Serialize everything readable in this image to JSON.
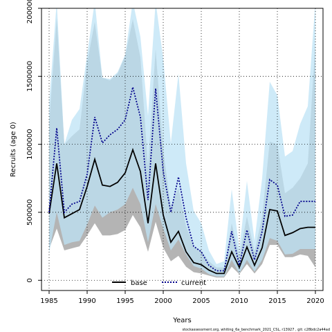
{
  "chart_data": {
    "type": "line",
    "title": "",
    "xlabel": "Years",
    "ylabel": "Recruits (age 0)",
    "xlim": [
      1984,
      2021
    ],
    "ylim": [
      -75000,
      2000000
    ],
    "x_ticks": [
      1985,
      1990,
      1995,
      2000,
      2005,
      2010,
      2015,
      2020
    ],
    "y_ticks": [
      0,
      500000,
      1000000,
      1500000,
      2000000
    ],
    "grid": true,
    "legend_position": "bottom-center",
    "colors": {
      "base_band": "#b4b4b4",
      "current_band": "#bde3f5",
      "base_line": "#000000",
      "current_line": "#00008b"
    },
    "x": [
      1985,
      1986,
      1987,
      1988,
      1989,
      1990,
      1991,
      1992,
      1993,
      1994,
      1995,
      1996,
      1997,
      1998,
      1999,
      2000,
      2001,
      2002,
      2003,
      2004,
      2005,
      2006,
      2007,
      2008,
      2009,
      2010,
      2011,
      2012,
      2013,
      2014,
      2015,
      2016,
      2017,
      2018,
      2019,
      2020
    ],
    "series": [
      {
        "name": "base",
        "values": [
          490000,
          860000,
          460000,
          490000,
          520000,
          690000,
          890000,
          700000,
          690000,
          720000,
          790000,
          960000,
          800000,
          420000,
          860000,
          480000,
          280000,
          360000,
          210000,
          130000,
          115000,
          75000,
          50000,
          50000,
          210000,
          95000,
          245000,
          110000,
          240000,
          520000,
          510000,
          330000,
          350000,
          380000,
          390000,
          390000
        ],
        "lower": [
          230000,
          380000,
          220000,
          235000,
          250000,
          330000,
          420000,
          330000,
          330000,
          340000,
          370000,
          480000,
          390000,
          210000,
          430000,
          240000,
          140000,
          180000,
          100000,
          60000,
          50000,
          35000,
          20000,
          20000,
          100000,
          45000,
          120000,
          50000,
          120000,
          260000,
          260000,
          170000,
          170000,
          190000,
          180000,
          95000
        ],
        "upper": [
          1150000,
          1930000,
          1000000,
          1060000,
          1110000,
          1600000,
          1900000,
          1490000,
          1470000,
          1520000,
          1650000,
          1920000,
          1640000,
          840000,
          1700000,
          960000,
          540000,
          680000,
          400000,
          250000,
          220000,
          140000,
          95000,
          95000,
          420000,
          180000,
          470000,
          210000,
          470000,
          1020000,
          1000000,
          640000,
          680000,
          750000,
          860000,
          1750000
        ]
      },
      {
        "name": "current",
        "values": [
          500000,
          1120000,
          500000,
          560000,
          580000,
          780000,
          1200000,
          1010000,
          1070000,
          1110000,
          1180000,
          1420000,
          1200000,
          590000,
          1410000,
          800000,
          500000,
          760000,
          460000,
          250000,
          210000,
          110000,
          70000,
          70000,
          360000,
          110000,
          370000,
          150000,
          360000,
          740000,
          700000,
          470000,
          480000,
          580000,
          580000,
          580000
        ],
        "lower": [
          200000,
          500000,
          260000,
          280000,
          290000,
          410000,
          550000,
          460000,
          500000,
          520000,
          560000,
          680000,
          560000,
          280000,
          560000,
          380000,
          220000,
          300000,
          190000,
          105000,
          85000,
          45000,
          28000,
          28000,
          150000,
          50000,
          150000,
          65000,
          150000,
          310000,
          290000,
          190000,
          195000,
          230000,
          230000,
          230000
        ],
        "upper": [
          1300000,
          2050000,
          1000000,
          1180000,
          1260000,
          1660000,
          2050000,
          1490000,
          1480000,
          1530000,
          1660000,
          2050000,
          1790000,
          1210000,
          2050000,
          1630000,
          1010000,
          1520000,
          860000,
          510000,
          420000,
          220000,
          120000,
          140000,
          670000,
          230000,
          730000,
          290000,
          750000,
          1460000,
          1360000,
          910000,
          950000,
          1150000,
          1280000,
          2050000
        ]
      }
    ],
    "footer_text": "stockassessment.org, whiting_6a_benchmark_2021_CSL, r13927 , git: c28bdc2a44ad"
  }
}
